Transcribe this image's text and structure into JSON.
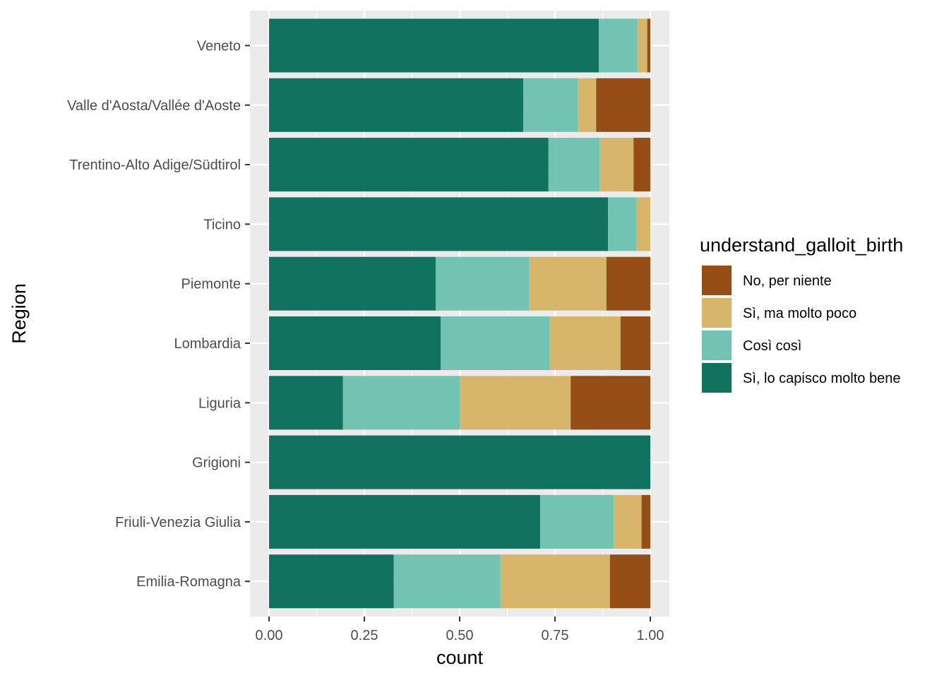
{
  "chart_data": {
    "type": "bar",
    "orientation": "horizontal",
    "stacked": true,
    "position": "fill",
    "title": "",
    "xlabel": "count",
    "ylabel": "Region",
    "xlim": [
      0,
      1
    ],
    "xticks": [
      "0.00",
      "0.25",
      "0.50",
      "0.75",
      "1.00"
    ],
    "grid": true,
    "categories": [
      "Veneto",
      "Valle d'Aosta/Vallée d'Aoste",
      "Trentino-Alto Adige/Südtirol",
      "Ticino",
      "Piemonte",
      "Lombardia",
      "Liguria",
      "Grigioni",
      "Friuli-Venezia Giulia",
      "Emilia-Romagna"
    ],
    "series": [
      {
        "name": "Sì, lo capisco molto bene",
        "color": "#11735F",
        "values": [
          0.865,
          0.667,
          0.733,
          0.889,
          0.437,
          0.45,
          0.194,
          1.0,
          0.711,
          0.327
        ]
      },
      {
        "name": "Così così",
        "color": "#72C3B2",
        "values": [
          0.101,
          0.143,
          0.134,
          0.074,
          0.245,
          0.286,
          0.306,
          0.0,
          0.193,
          0.28
        ]
      },
      {
        "name": "Sì, ma molto poco",
        "color": "#D7B66B",
        "values": [
          0.026,
          0.048,
          0.089,
          0.037,
          0.203,
          0.186,
          0.291,
          0.0,
          0.073,
          0.287
        ]
      },
      {
        "name": "No, per niente",
        "color": "#964E17",
        "values": [
          0.008,
          0.142,
          0.044,
          0.0,
          0.115,
          0.078,
          0.209,
          0.0,
          0.023,
          0.106
        ]
      }
    ],
    "legend": {
      "title": "understand_galloit_birth",
      "placement": "right",
      "order": [
        "No, per niente",
        "Sì, ma molto poco",
        "Così così",
        "Sì, lo capisco molto bene"
      ]
    }
  }
}
